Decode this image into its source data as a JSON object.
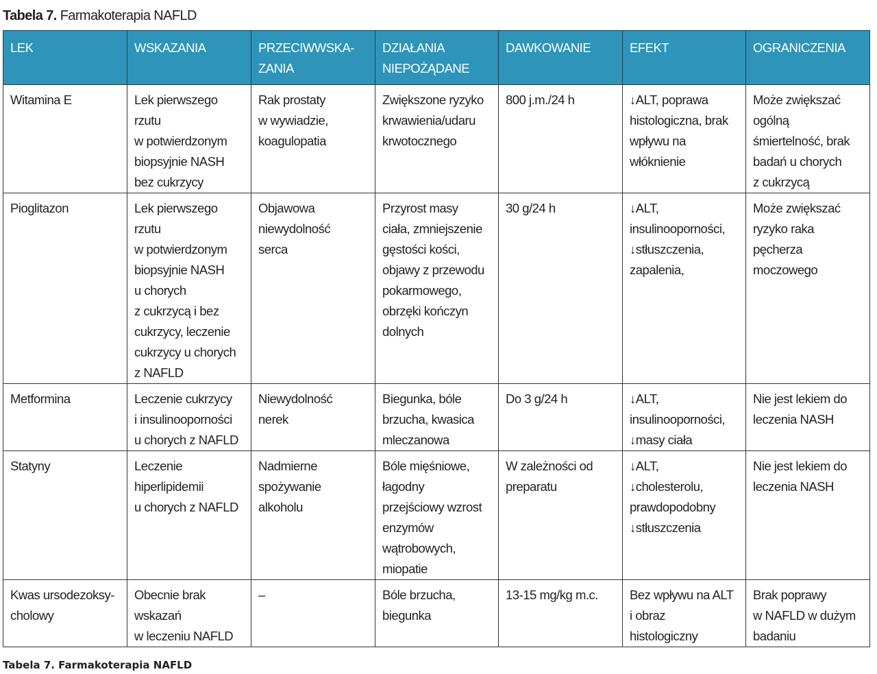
{
  "title": {
    "bold": "Tabela 7.",
    "text": "Farmakoterapia NAFLD"
  },
  "columns": [
    "LEK",
    "WSKAZANIA",
    "PRZECIWWSKA-\nZANIA",
    "DZIAŁANIA\nNIEPOŻĄDANE",
    "DAWKOWANIE",
    "EFEKT",
    "OGRANICZENIA"
  ],
  "rows": [
    [
      "Witamina E",
      "Lek pierwszego\nrzutu\nw potwierdzonym\nbiopsyjnie NASH\nbez cukrzycy",
      "Rak prostaty\nw wywiadzie,\nkoagulopatia",
      "Zwiększone ryzyko\nkrwawienia/udaru\nkrwotocznego",
      "800 j.m./24 h",
      "↓ALT, poprawa\nhistologiczna, brak\nwpływu na\nwłóknienie",
      "Może zwiększać\nogólną\nśmiertelność, brak\nbadań u chorych\nz cukrzycą"
    ],
    [
      "Pioglitazon",
      "Lek pierwszego\nrzutu\nw potwierdzonym\nbiopsyjnie NASH\nu chorych\nz cukrzycą i bez\ncukrzycy, leczenie\ncukrzycy u chorych\nz NAFLD",
      "Objawowa\nniewydolność\nserca",
      "Przyrost masy\nciała, zmniejszenie\ngęstości kości,\nobjawy z przewodu\npokarmowego,\nobrzęki kończyn\ndolnych",
      "30 g/24 h",
      "↓ALT,\ninsulinooporności,\n↓stłuszczenia,\nzapalenia,",
      "Może zwiększać\nryzyko raka\npęcherza\nmoczowego"
    ],
    [
      "Metformina",
      "Leczenie cukrzycy\ni insulinooporności\nu chorych z NAFLD",
      "Niewydolność\nnerek",
      "Biegunka, bóle\nbrzucha, kwasica\nmleczanowa",
      "Do 3 g/24 h",
      "↓ALT,\ninsulinooporności,\n↓masy ciała",
      "Nie jest lekiem do\nleczenia NASH"
    ],
    [
      "Statyny",
      "Leczenie\nhiperlipidemii\nu chorych z NAFLD",
      "Nadmierne\nspożywanie\nalkoholu",
      "Bóle mięśniowe,\nłagodny\nprzejściowy wzrost\nenzymów\nwątrobowych,\nmiopatie",
      "W zależności od\npreparatu",
      "↓ALT,\n↓cholesterolu,\nprawdopodobny\n↓stłuszczenia",
      "Nie jest lekiem do\nleczenia NASH"
    ],
    [
      "Kwas ursodezoksy-\ncholowy",
      "Obecnie brak\nwskazań\nw leczeniu NAFLD",
      "–",
      "Bóle brzucha,\nbiegunka",
      "13-15 mg/kg m.c.",
      "Bez wpływu na ALT\ni obraz\nhistologiczny",
      "Brak poprawy\nw NAFLD w dużym\nbadaniu"
    ]
  ],
  "caption": "Tabela 7. Farmakoterapia NAFLD",
  "colors": {
    "header_bg": "#2e94b9",
    "header_text": "#ffffff"
  }
}
